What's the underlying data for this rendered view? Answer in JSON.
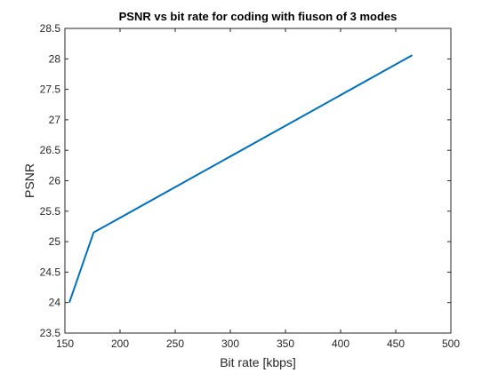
{
  "chart_data": {
    "type": "line",
    "title": "PSNR vs bit rate for coding with fiuson of 3 modes",
    "xlabel": "Bit rate [kbps]",
    "ylabel": "PSNR",
    "xlim": [
      150,
      500
    ],
    "ylim": [
      23.5,
      28.5
    ],
    "x_ticks": [
      "150",
      "200",
      "250",
      "300",
      "350",
      "400",
      "450",
      "500"
    ],
    "y_ticks": [
      "23.5",
      "24",
      "24.5",
      "25",
      "25.5",
      "26",
      "26.5",
      "27",
      "27.5",
      "28",
      "28.5"
    ],
    "grid": false,
    "series": [
      {
        "color": "#0072bd",
        "x": [
          154,
          176,
          465
        ],
        "y": [
          24.0,
          25.15,
          28.06
        ]
      }
    ]
  }
}
